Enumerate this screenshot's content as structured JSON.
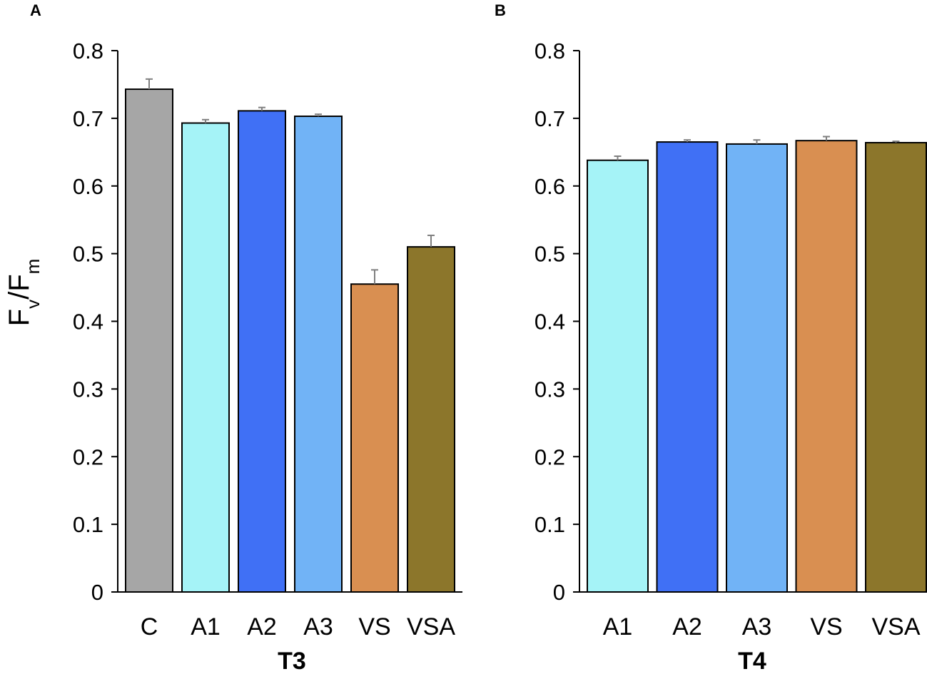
{
  "figure": {
    "ylabel_main": "F",
    "ylabel_sub_v": "v",
    "ylabel_slash": "/F",
    "ylabel_sub_m": "m"
  },
  "chart_data": [
    {
      "type": "bar",
      "panel": "A",
      "group_label": "T3",
      "ylim": [
        0,
        0.8
      ],
      "yticks": [
        "0",
        "0.1",
        "0.2",
        "0.3",
        "0.4",
        "0.5",
        "0.6",
        "0.7",
        "0.8"
      ],
      "categories": [
        "C",
        "A1",
        "A2",
        "A3",
        "VS",
        "VSA"
      ],
      "values": [
        0.743,
        0.693,
        0.711,
        0.703,
        0.455,
        0.51
      ],
      "errors": [
        0.015,
        0.005,
        0.005,
        0.003,
        0.021,
        0.017
      ],
      "colors": [
        "#a6a6a6",
        "#a5f3f7",
        "#4070f5",
        "#71b3f6",
        "#d98f51",
        "#8c762b"
      ]
    },
    {
      "type": "bar",
      "panel": "B",
      "group_label": "T4",
      "ylim": [
        0,
        0.8
      ],
      "yticks": [
        "0",
        "0.1",
        "0.2",
        "0.3",
        "0.4",
        "0.5",
        "0.6",
        "0.7",
        "0.8"
      ],
      "categories": [
        "A1",
        "A2",
        "A3",
        "VS",
        "VSA"
      ],
      "values": [
        0.638,
        0.665,
        0.662,
        0.667,
        0.664
      ],
      "errors": [
        0.006,
        0.003,
        0.006,
        0.006,
        0.002
      ],
      "colors": [
        "#a5f3f7",
        "#4070f5",
        "#71b3f6",
        "#d98f51",
        "#8c762b"
      ]
    }
  ]
}
